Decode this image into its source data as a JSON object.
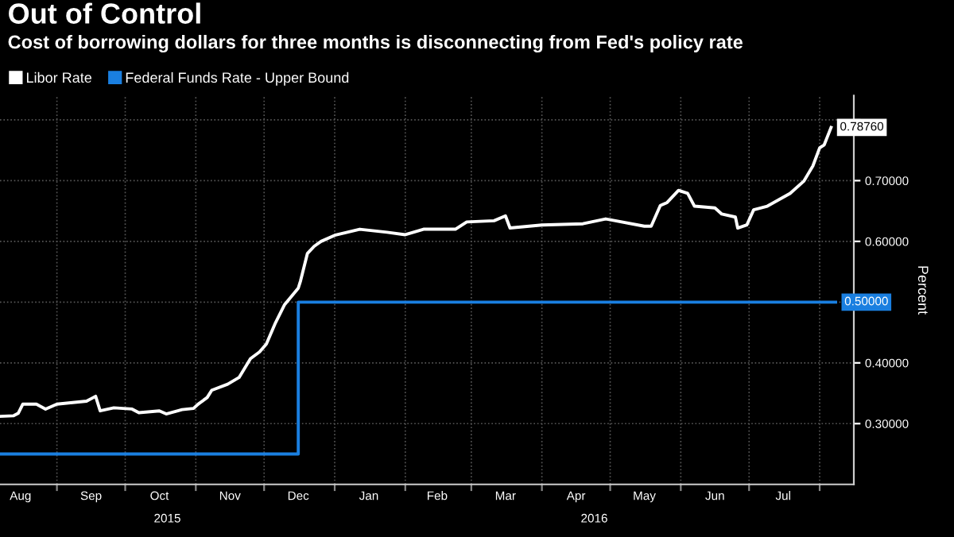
{
  "chart_data": {
    "type": "line",
    "title": "Out of Control",
    "subtitle": "Cost of borrowing dollars for three months is disconnecting from Fed's policy rate",
    "ylabel": "Percent",
    "annotations": [
      "2015",
      "2016"
    ],
    "series": [
      {
        "name": "Libor Rate",
        "color": "#ffffff",
        "x": [
          "2015-08-07",
          "2015-08-13",
          "2015-08-15",
          "2015-08-17",
          "2015-08-23",
          "2015-08-27",
          "2015-09-01",
          "2015-09-14",
          "2015-09-18",
          "2015-09-20",
          "2015-09-26",
          "2015-10-04",
          "2015-10-07",
          "2015-10-16",
          "2015-10-19",
          "2015-10-26",
          "2015-10-31",
          "2015-11-02",
          "2015-11-06",
          "2015-11-08",
          "2015-11-15",
          "2015-11-20",
          "2015-11-25",
          "2015-11-29",
          "2015-12-02",
          "2015-12-06",
          "2015-12-10",
          "2015-12-16",
          "2015-12-17",
          "2015-12-20",
          "2015-12-23",
          "2015-12-26",
          "2016-01-01",
          "2016-01-12",
          "2016-01-24",
          "2016-02-01",
          "2016-02-09",
          "2016-02-23",
          "2016-02-28",
          "2016-03-11",
          "2016-03-16",
          "2016-03-18",
          "2016-04-01",
          "2016-04-19",
          "2016-04-29",
          "2016-05-16",
          "2016-05-19",
          "2016-05-23",
          "2016-05-26",
          "2016-05-31",
          "2016-06-04",
          "2016-06-07",
          "2016-06-16",
          "2016-06-19",
          "2016-06-25",
          "2016-06-26",
          "2016-06-30",
          "2016-07-03",
          "2016-07-09",
          "2016-07-19",
          "2016-07-25",
          "2016-07-29",
          "2016-08-01",
          "2016-08-03",
          "2016-08-06"
        ],
        "values": [
          0.312,
          0.313,
          0.317,
          0.332,
          0.332,
          0.324,
          0.332,
          0.337,
          0.345,
          0.321,
          0.326,
          0.324,
          0.318,
          0.321,
          0.316,
          0.323,
          0.325,
          0.332,
          0.343,
          0.355,
          0.365,
          0.376,
          0.407,
          0.418,
          0.431,
          0.466,
          0.496,
          0.523,
          0.535,
          0.58,
          0.592,
          0.6,
          0.61,
          0.62,
          0.615,
          0.611,
          0.62,
          0.62,
          0.632,
          0.634,
          0.642,
          0.622,
          0.627,
          0.629,
          0.637,
          0.625,
          0.625,
          0.659,
          0.664,
          0.684,
          0.679,
          0.658,
          0.655,
          0.645,
          0.64,
          0.622,
          0.627,
          0.652,
          0.658,
          0.679,
          0.699,
          0.724,
          0.754,
          0.759,
          0.7876
        ],
        "value_labels": [
          null,
          null,
          null,
          null,
          null,
          null,
          null,
          null,
          null,
          null,
          null,
          null,
          null,
          null,
          null,
          null,
          null,
          null,
          null,
          null,
          null,
          null,
          null,
          null,
          null,
          null,
          null,
          null,
          null,
          null,
          null,
          null,
          null,
          null,
          null,
          null,
          null,
          null,
          null,
          null,
          null,
          null,
          null,
          null,
          null,
          null,
          null,
          null,
          null,
          null,
          null,
          null,
          null,
          null,
          null,
          null,
          null,
          null,
          null,
          null,
          null,
          null,
          null,
          null,
          "0.78760"
        ]
      },
      {
        "name": "Federal Funds Rate - Upper Bound",
        "color": "#1a7fe0",
        "type": "step",
        "x": [
          "2015-08-07",
          "2015-12-16",
          "2016-08-08"
        ],
        "values": [
          0.25,
          0.5,
          0.5
        ],
        "value_labels": [
          null,
          null,
          "0.50000"
        ]
      }
    ],
    "xlim": [
      "2015-08-07",
      "2016-08-16"
    ],
    "xticks": [
      {
        "value": "2015-08-16",
        "label": "Aug"
      },
      {
        "value": "2015-09-01",
        "label": null
      },
      {
        "value": "2015-09-16",
        "label": "Sep"
      },
      {
        "value": "2015-10-01",
        "label": null
      },
      {
        "value": "2015-10-16",
        "label": "Oct"
      },
      {
        "value": "2015-11-01",
        "label": null
      },
      {
        "value": "2015-11-16",
        "label": "Nov"
      },
      {
        "value": "2015-12-01",
        "label": null
      },
      {
        "value": "2015-12-16",
        "label": "Dec"
      },
      {
        "value": "2016-01-01",
        "label": null
      },
      {
        "value": "2016-01-16",
        "label": "Jan"
      },
      {
        "value": "2016-02-01",
        "label": null
      },
      {
        "value": "2016-02-15",
        "label": "Feb"
      },
      {
        "value": "2016-03-01",
        "label": null
      },
      {
        "value": "2016-03-16",
        "label": "Mar"
      },
      {
        "value": "2016-04-01",
        "label": null
      },
      {
        "value": "2016-04-16",
        "label": "Apr"
      },
      {
        "value": "2016-05-01",
        "label": null
      },
      {
        "value": "2016-05-16",
        "label": "May"
      },
      {
        "value": "2016-06-01",
        "label": null
      },
      {
        "value": "2016-06-16",
        "label": "Jun"
      },
      {
        "value": "2016-07-01",
        "label": null
      },
      {
        "value": "2016-07-16",
        "label": "Jul"
      },
      {
        "value": "2016-08-01",
        "label": null
      }
    ],
    "ylim": [
      0.2,
      0.84
    ],
    "yticks": [
      {
        "value": 0.3,
        "label": "0.30000"
      },
      {
        "value": 0.4,
        "label": "0.40000"
      },
      {
        "value": 0.5,
        "label": null
      },
      {
        "value": 0.6,
        "label": "0.60000"
      },
      {
        "value": 0.7,
        "label": "0.70000"
      },
      {
        "value": 0.8,
        "label": null
      }
    ],
    "grid": true,
    "legend": "top left",
    "line_style": "solid"
  }
}
